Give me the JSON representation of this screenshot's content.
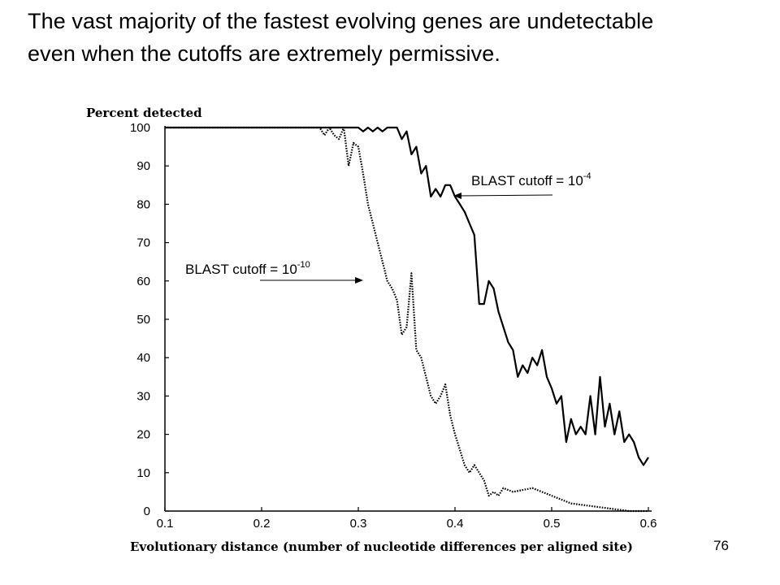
{
  "slide": {
    "title_line1": "The vast majority of the fastest evolving genes are undetectable",
    "title_line2": "even when the cutoffs are extremely permissive.",
    "page_number": "76"
  },
  "chart_data": {
    "type": "line",
    "ylabel": "Percent detected",
    "xlabel": "Evolutionary distance (number of nucleotide differences per aligned site)",
    "xlim": [
      0.1,
      0.6
    ],
    "ylim": [
      0,
      100
    ],
    "x_ticks": [
      "0.1",
      "0.2",
      "0.3",
      "0.4",
      "0.5",
      "0.6"
    ],
    "y_ticks": [
      "0",
      "10",
      "20",
      "30",
      "40",
      "50",
      "60",
      "70",
      "80",
      "90",
      "100"
    ],
    "grid": false,
    "series": [
      {
        "name": "BLAST cutoff = 10-4",
        "style": "solid",
        "color": "#000000",
        "x": [
          0.1,
          0.2,
          0.3,
          0.305,
          0.31,
          0.315,
          0.32,
          0.325,
          0.33,
          0.335,
          0.34,
          0.345,
          0.35,
          0.355,
          0.36,
          0.365,
          0.37,
          0.375,
          0.38,
          0.385,
          0.39,
          0.395,
          0.4,
          0.405,
          0.41,
          0.415,
          0.42,
          0.425,
          0.43,
          0.435,
          0.44,
          0.445,
          0.45,
          0.455,
          0.46,
          0.465,
          0.47,
          0.475,
          0.48,
          0.485,
          0.49,
          0.495,
          0.5,
          0.505,
          0.51,
          0.515,
          0.52,
          0.525,
          0.53,
          0.535,
          0.54,
          0.545,
          0.55,
          0.555,
          0.56,
          0.565,
          0.57,
          0.575,
          0.58,
          0.585,
          0.59,
          0.595,
          0.6
        ],
        "values": [
          100,
          100,
          100,
          99,
          100,
          99,
          100,
          99,
          100,
          100,
          100,
          97,
          99,
          93,
          95,
          88,
          90,
          82,
          84,
          82,
          85,
          85,
          82,
          80,
          78,
          75,
          72,
          54,
          54,
          60,
          58,
          52,
          48,
          44,
          42,
          35,
          38,
          36,
          40,
          38,
          42,
          35,
          32,
          28,
          30,
          18,
          24,
          20,
          22,
          20,
          30,
          20,
          35,
          22,
          28,
          20,
          26,
          18,
          20,
          18,
          14,
          12,
          14
        ]
      },
      {
        "name": "BLAST cutoff = 10-10",
        "style": "dotted",
        "color": "#000000",
        "x": [
          0.1,
          0.2,
          0.26,
          0.265,
          0.27,
          0.275,
          0.28,
          0.285,
          0.29,
          0.295,
          0.3,
          0.305,
          0.31,
          0.315,
          0.32,
          0.325,
          0.33,
          0.335,
          0.34,
          0.345,
          0.35,
          0.355,
          0.36,
          0.365,
          0.37,
          0.375,
          0.38,
          0.385,
          0.39,
          0.395,
          0.4,
          0.405,
          0.41,
          0.415,
          0.42,
          0.425,
          0.43,
          0.435,
          0.44,
          0.445,
          0.45,
          0.46,
          0.48,
          0.5,
          0.52,
          0.55,
          0.58,
          0.6
        ],
        "values": [
          100,
          100,
          100,
          98,
          100,
          98,
          97,
          100,
          90,
          96,
          95,
          88,
          80,
          75,
          70,
          65,
          60,
          58,
          55,
          46,
          48,
          62,
          42,
          40,
          35,
          30,
          28,
          30,
          33,
          25,
          20,
          16,
          12,
          10,
          12,
          10,
          8,
          4,
          5,
          4,
          6,
          5,
          6,
          4,
          2,
          1,
          0,
          0
        ]
      }
    ],
    "annotations": [
      {
        "text_prefix": "BLAST cutoff = 10",
        "text_sup": "-4",
        "points_to_series": "BLAST cutoff = 10-4"
      },
      {
        "text_prefix": "BLAST cutoff = 10",
        "text_sup": "-10",
        "points_to_series": "BLAST cutoff = 10-10"
      }
    ]
  }
}
